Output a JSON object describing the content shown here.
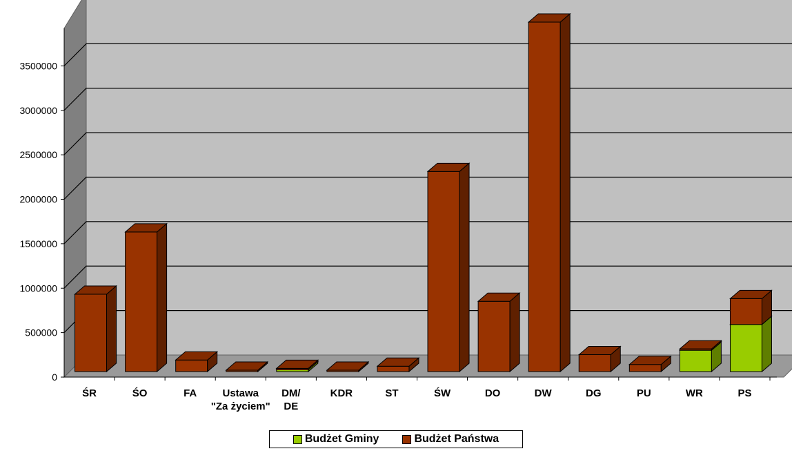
{
  "chart_data": {
    "type": "bar",
    "stacked": true,
    "three_d": true,
    "categories": [
      "ŚR",
      "ŚO",
      "FA",
      "Ustawa \"Za życiem\"",
      "DM/ DE",
      "KDR",
      "ST",
      "ŚW",
      "DO",
      "DW",
      "DG",
      "PU",
      "WR",
      "PS"
    ],
    "category_lines": [
      [
        "ŚR"
      ],
      [
        "ŚO"
      ],
      [
        "FA"
      ],
      [
        "Ustawa",
        "\"Za życiem\""
      ],
      [
        "DM/",
        "DE"
      ],
      [
        "KDR"
      ],
      [
        "ST"
      ],
      [
        "ŚW"
      ],
      [
        "DO"
      ],
      [
        "DW"
      ],
      [
        "DG"
      ],
      [
        "PU"
      ],
      [
        "WR"
      ],
      [
        "PS"
      ]
    ],
    "series": [
      {
        "name": "Budżet Gminy",
        "color": "#99CC00",
        "values": [
          0,
          0,
          0,
          0,
          20000,
          0,
          0,
          0,
          0,
          0,
          0,
          0,
          240000,
          530000
        ]
      },
      {
        "name": "Budżet Państwa",
        "color": "#993300",
        "values": [
          870000,
          1570000,
          130000,
          2000,
          8000,
          2000,
          60000,
          2250000,
          790000,
          3930000,
          190000,
          80000,
          10000,
          290000
        ]
      }
    ],
    "ylim": [
      0,
      4000000
    ],
    "yticks": [
      0,
      500000,
      1000000,
      1500000,
      2000000,
      2500000,
      3000000,
      3500000
    ],
    "ytick_labels": [
      "0",
      "500000",
      "1000000",
      "1500000",
      "2000000",
      "2500000",
      "3000000",
      "3500000"
    ],
    "grid": true,
    "legend_position": "bottom"
  }
}
